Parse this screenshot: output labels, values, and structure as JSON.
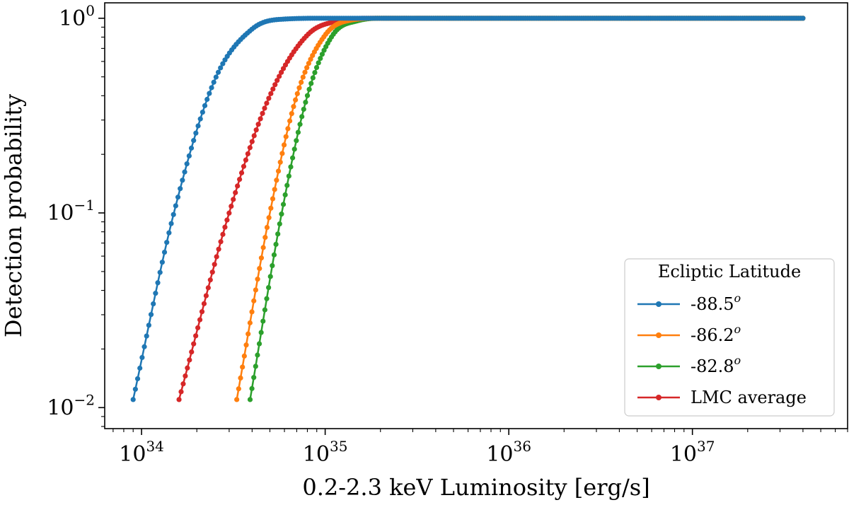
{
  "chart_data": {
    "type": "line",
    "title": "",
    "xlabel": "0.2-2.3 keV Luminosity [erg/s]",
    "ylabel": "Detection probability",
    "xscale": "log",
    "yscale": "log",
    "xlim": [
      6.3e+33,
      7e+37
    ],
    "ylim": [
      0.0078,
      1.2
    ],
    "xticks": [
      {
        "value": 1e+34,
        "base": "10",
        "exp": "34"
      },
      {
        "value": 1e+35,
        "base": "10",
        "exp": "35"
      },
      {
        "value": 1e+36,
        "base": "10",
        "exp": "36"
      },
      {
        "value": 1e+37,
        "base": "10",
        "exp": "37"
      }
    ],
    "yticks": [
      {
        "value": 1.0,
        "base": "10",
        "exp": "0"
      },
      {
        "value": 0.1,
        "base": "10",
        "exp": "−1"
      },
      {
        "value": 0.01,
        "base": "10",
        "exp": "−2"
      }
    ],
    "legend": {
      "title": "Ecliptic Latitude",
      "location": "lower right"
    },
    "series": [
      {
        "name": "-88.5",
        "superscript": "o",
        "color": "#1f77b4",
        "x": [
          9e+33,
          1.5e+34,
          2.5e+34,
          4e+34,
          6e+34,
          1e+35,
          1.5e+35,
          4e+37
        ],
        "y": [
          0.011,
          0.1,
          0.48,
          0.88,
          0.99,
          1.0,
          1.0,
          1.0
        ]
      },
      {
        "name": "-86.2",
        "superscript": "o",
        "color": "#ff7f0e",
        "x": [
          3.3e+34,
          5e+34,
          7e+34,
          1e+35,
          1.4e+35,
          2e+35,
          3e+35,
          4e+37
        ],
        "y": [
          0.011,
          0.1,
          0.4,
          0.82,
          0.98,
          1.0,
          1.0,
          1.0
        ]
      },
      {
        "name": "-82.8",
        "superscript": "o",
        "color": "#2ca02c",
        "x": [
          3.9e+34,
          5.8e+34,
          8e+34,
          1.1e+35,
          1.5e+35,
          2.1e+35,
          3e+35,
          4e+37
        ],
        "y": [
          0.011,
          0.1,
          0.4,
          0.82,
          0.97,
          1.0,
          1.0,
          1.0
        ]
      },
      {
        "name": "LMC average",
        "superscript": "",
        "color": "#d62728",
        "x": [
          1.6e+34,
          3e+34,
          5e+34,
          8e+34,
          1.2e+35,
          1.8e+35,
          3e+35,
          4e+37
        ],
        "y": [
          0.011,
          0.1,
          0.4,
          0.82,
          0.97,
          1.0,
          1.0,
          1.0
        ]
      }
    ]
  }
}
